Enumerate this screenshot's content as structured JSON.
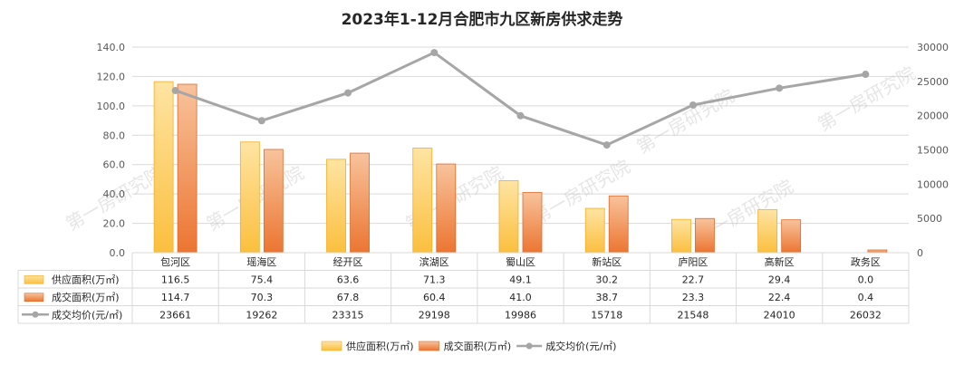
{
  "chart_data": {
    "type": "bar",
    "title": "2023年1-12月合肥市九区新房供求走势",
    "categories": [
      "包河区",
      "瑶海区",
      "经开区",
      "滨湖区",
      "蜀山区",
      "新站区",
      "庐阳区",
      "高新区",
      "政务区"
    ],
    "series": [
      {
        "name": "供应面积(万㎡)",
        "type": "bar",
        "axis": "left",
        "values": [
          116.5,
          75.4,
          63.6,
          71.3,
          49.1,
          30.2,
          22.7,
          29.4,
          0.0
        ],
        "labels": [
          "116.5",
          "75.4",
          "63.6",
          "71.3",
          "49.1",
          "30.2",
          "22.7",
          "29.4",
          "0.0"
        ],
        "color": "#fbc24a"
      },
      {
        "name": "成交面积(万㎡)",
        "type": "bar",
        "axis": "left",
        "values": [
          114.7,
          70.3,
          67.8,
          60.4,
          41.0,
          38.7,
          23.3,
          22.4,
          0.4
        ],
        "labels": [
          "114.7",
          "70.3",
          "67.8",
          "60.4",
          "41.0",
          "38.7",
          "23.3",
          "22.4",
          "0.4"
        ],
        "color": "#ef7e3c"
      },
      {
        "name": "成交均价(元/㎡)",
        "type": "line",
        "axis": "right",
        "values": [
          23661,
          19262,
          23315,
          29198,
          19986,
          15718,
          21548,
          24010,
          26032
        ],
        "labels": [
          "23661",
          "19262",
          "23315",
          "29198",
          "19986",
          "15718",
          "21548",
          "24010",
          "26032"
        ],
        "color": "#a6a6a6"
      }
    ],
    "y_left": {
      "ylim": [
        0,
        140
      ],
      "ticks": [
        "0.0",
        "20.0",
        "40.0",
        "60.0",
        "80.0",
        "100.0",
        "120.0",
        "140.0"
      ]
    },
    "y_right": {
      "ylim": [
        0,
        30000
      ],
      "ticks": [
        "0",
        "5000",
        "10000",
        "15000",
        "20000",
        "25000",
        "30000"
      ]
    },
    "grid": true,
    "legend_position": "bottom",
    "data_table": true,
    "watermark": "第一房研究院"
  }
}
